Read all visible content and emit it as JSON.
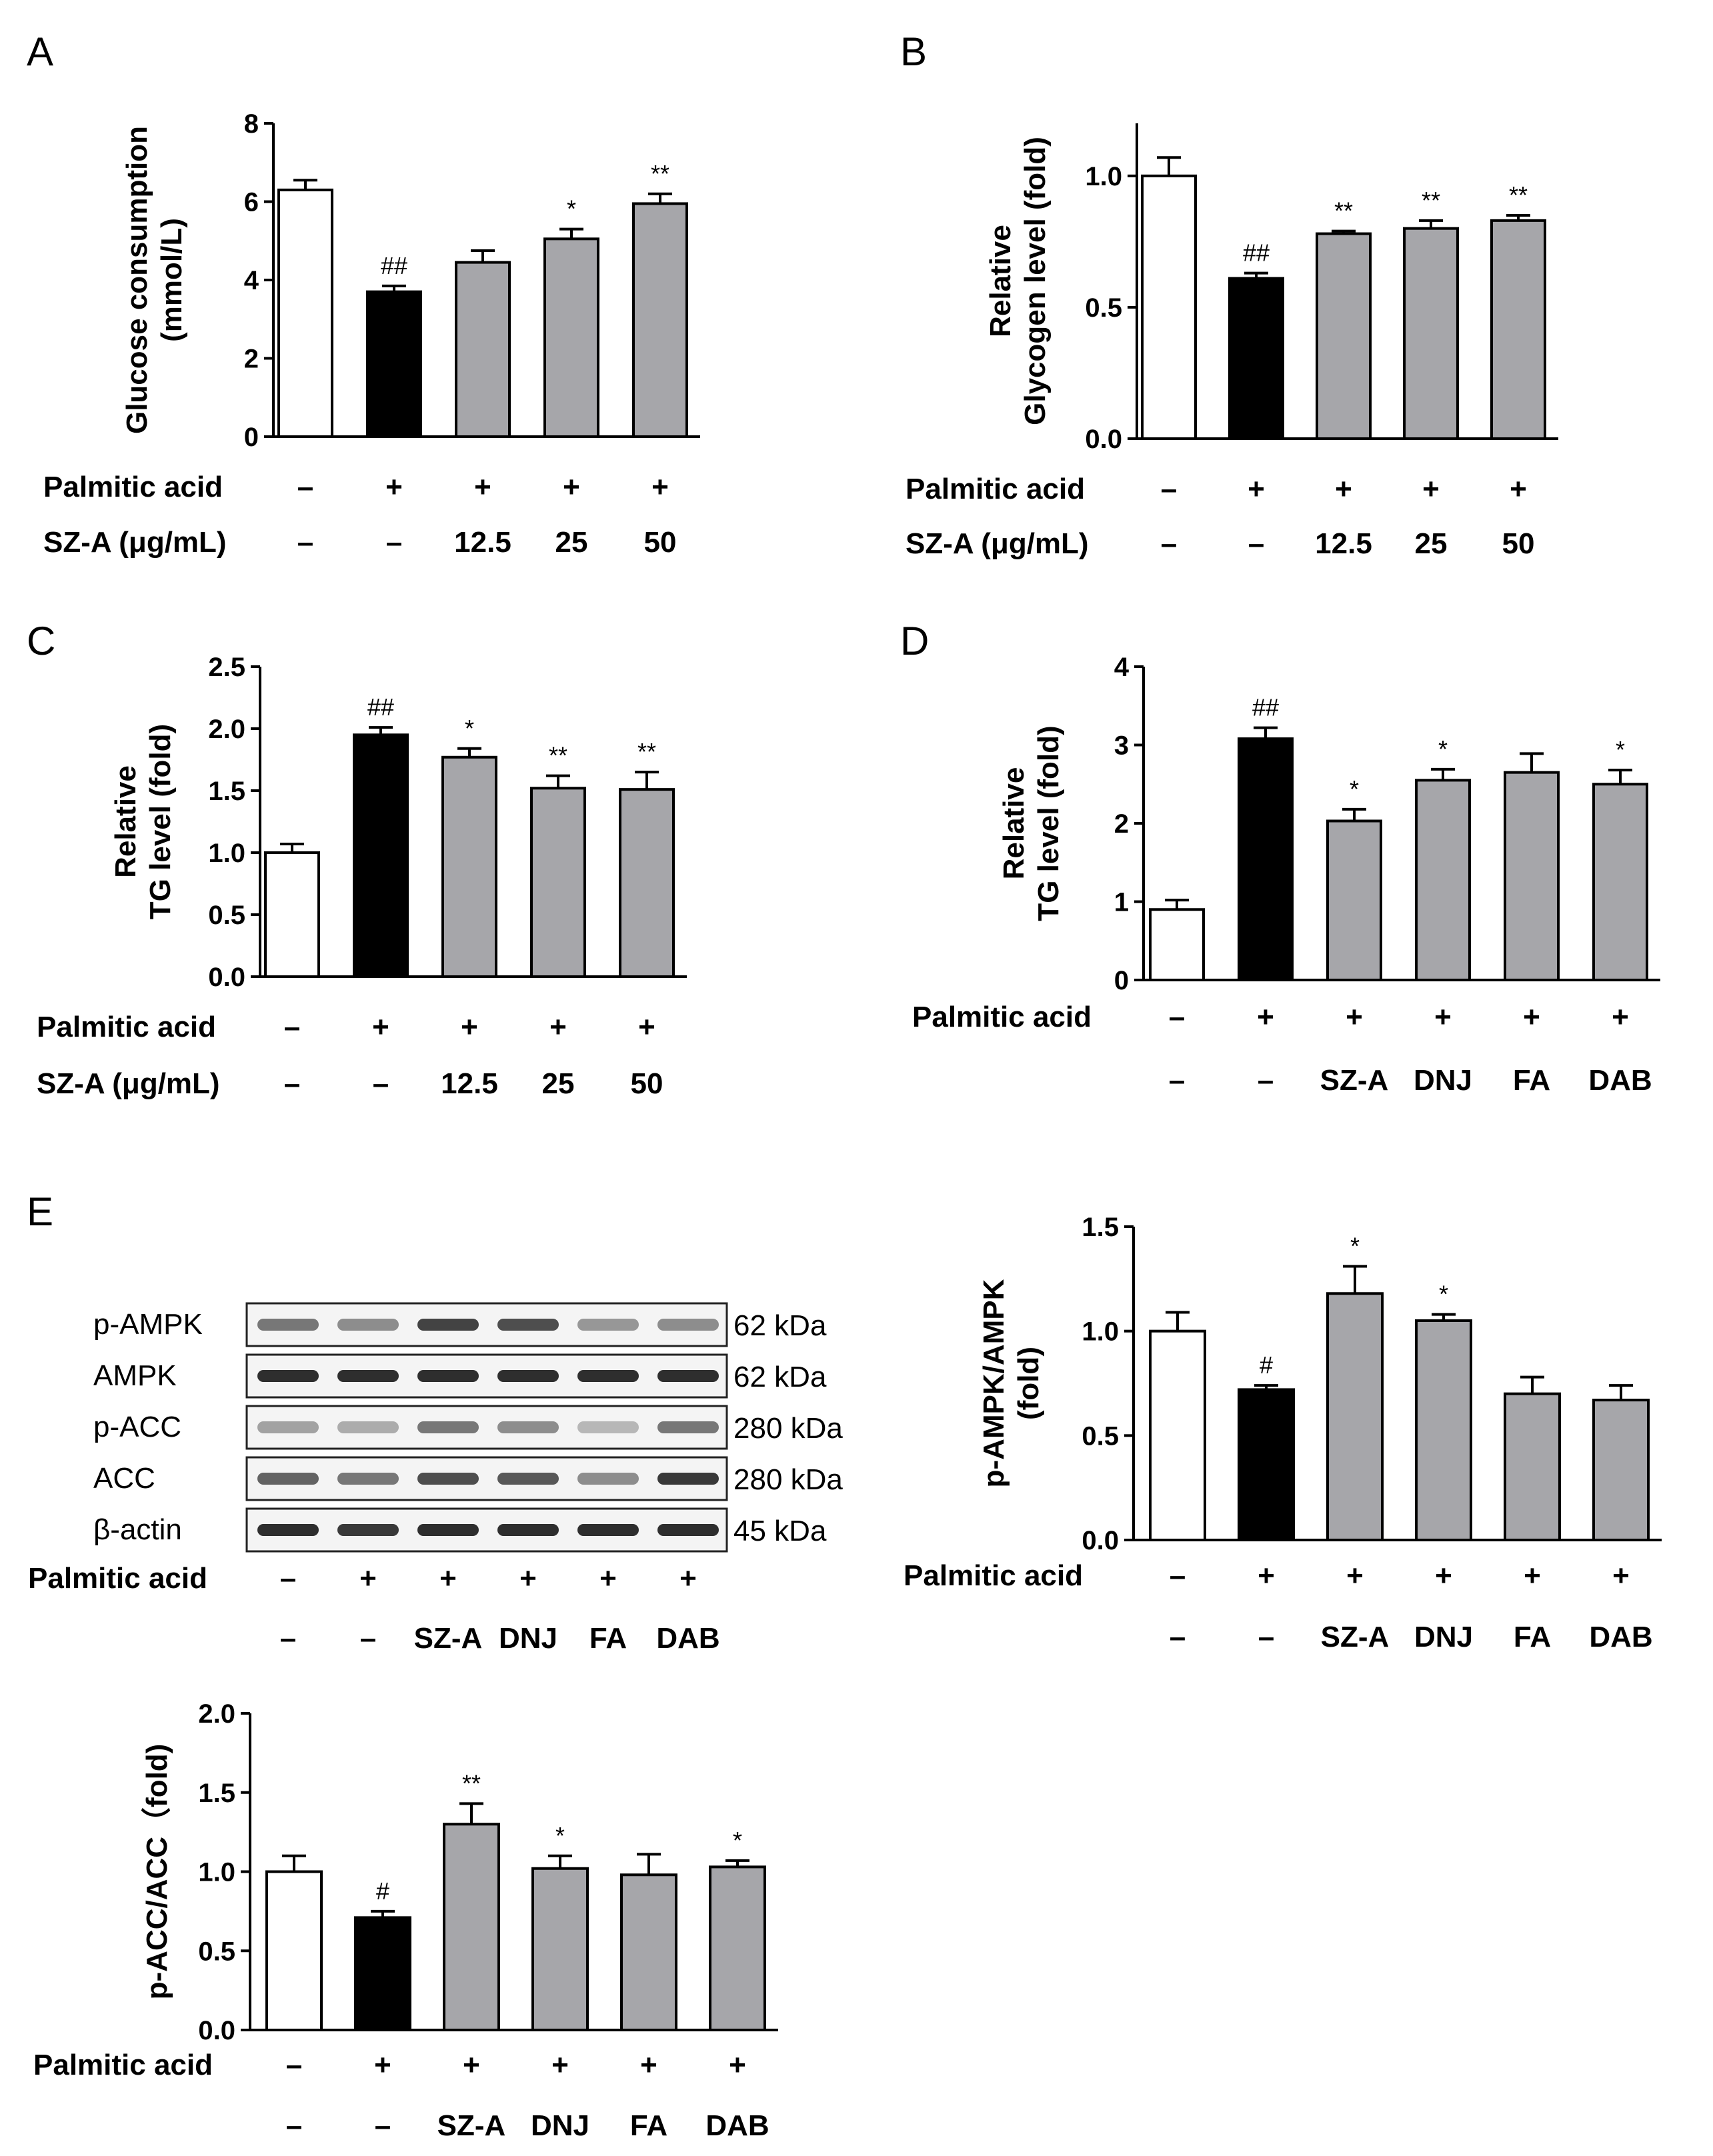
{
  "colors": {
    "control": "#ffffff",
    "model": "#000000",
    "treated": "#a6a6aa",
    "axis": "#000000"
  },
  "panels": {
    "A": "A",
    "B": "B",
    "C": "C",
    "D": "D",
    "E": "E"
  },
  "row_labels": {
    "palmitic": "Palmitic acid",
    "sza": "SZ-A (μg/mL)"
  },
  "chart_data": [
    {
      "id": "A",
      "type": "bar",
      "ylabel": [
        "Glucose consumption",
        "(mmol/L)"
      ],
      "ylim": [
        0,
        8
      ],
      "yticks": [
        "0",
        "2",
        "4",
        "6",
        "8"
      ],
      "values": [
        6.3,
        3.7,
        4.45,
        5.05,
        5.95
      ],
      "errors": [
        0.25,
        0.15,
        0.3,
        0.25,
        0.25
      ],
      "fills": [
        "control",
        "model",
        "treated",
        "treated",
        "treated"
      ],
      "sig": [
        "",
        "##",
        "",
        "*",
        "**"
      ],
      "rows": [
        {
          "label": "Palmitic acid",
          "values": [
            "–",
            "+",
            "+",
            "+",
            "+"
          ]
        },
        {
          "label": "SZ-A (μg/mL)",
          "values": [
            "–",
            "–",
            "12.5",
            "25",
            "50"
          ]
        }
      ]
    },
    {
      "id": "B",
      "type": "bar",
      "ylabel": [
        "Relative",
        "Glycogen level (fold)"
      ],
      "ylim": [
        0,
        1.2
      ],
      "yticks": [
        "0.0",
        "0.5",
        "1.0"
      ],
      "values": [
        1.0,
        0.61,
        0.78,
        0.8,
        0.83
      ],
      "errors": [
        0.07,
        0.02,
        0.01,
        0.03,
        0.02
      ],
      "fills": [
        "control",
        "model",
        "treated",
        "treated",
        "treated"
      ],
      "sig": [
        "",
        "##",
        "**",
        "**",
        "**"
      ],
      "rows": [
        {
          "label": "Palmitic acid",
          "values": [
            "–",
            "+",
            "+",
            "+",
            "+"
          ]
        },
        {
          "label": "SZ-A (μg/mL)",
          "values": [
            "–",
            "–",
            "12.5",
            "25",
            "50"
          ]
        }
      ]
    },
    {
      "id": "C",
      "type": "bar",
      "ylabel": [
        "Relative",
        "TG level (fold)"
      ],
      "ylim": [
        0,
        2.5
      ],
      "yticks": [
        "0.0",
        "0.5",
        "1.0",
        "1.5",
        "2.0",
        "2.5"
      ],
      "values": [
        1.0,
        1.95,
        1.77,
        1.52,
        1.51
      ],
      "errors": [
        0.07,
        0.06,
        0.07,
        0.1,
        0.14
      ],
      "fills": [
        "control",
        "model",
        "treated",
        "treated",
        "treated"
      ],
      "sig": [
        "",
        "##",
        "*",
        "**",
        "**"
      ],
      "rows": [
        {
          "label": "Palmitic acid",
          "values": [
            "–",
            "+",
            "+",
            "+",
            "+"
          ]
        },
        {
          "label": "SZ-A (μg/mL)",
          "values": [
            "–",
            "–",
            "12.5",
            "25",
            "50"
          ]
        }
      ]
    },
    {
      "id": "D",
      "type": "bar",
      "ylabel": [
        "Relative",
        "TG level (fold)"
      ],
      "ylim": [
        0,
        4
      ],
      "yticks": [
        "0",
        "1",
        "2",
        "3",
        "4"
      ],
      "values": [
        0.9,
        3.08,
        2.03,
        2.55,
        2.65,
        2.5
      ],
      "errors": [
        0.12,
        0.14,
        0.15,
        0.14,
        0.24,
        0.18
      ],
      "fills": [
        "control",
        "model",
        "treated",
        "treated",
        "treated",
        "treated"
      ],
      "sig": [
        "",
        "##",
        "*",
        "*",
        "",
        "*"
      ],
      "rows": [
        {
          "label": "Palmitic acid",
          "values": [
            "–",
            "+",
            "+",
            "+",
            "+",
            "+"
          ]
        },
        {
          "label": "",
          "values": [
            "–",
            "–",
            "SZ-A",
            "DNJ",
            "FA",
            "DAB"
          ]
        }
      ]
    },
    {
      "id": "E-AMPK",
      "type": "bar",
      "ylabel": [
        "p-AMPK/AMPK",
        "(fold)"
      ],
      "ylim": [
        0,
        1.5
      ],
      "yticks": [
        "0.0",
        "0.5",
        "1.0",
        "1.5"
      ],
      "values": [
        1.0,
        0.72,
        1.18,
        1.05,
        0.7,
        0.67
      ],
      "errors": [
        0.09,
        0.02,
        0.13,
        0.03,
        0.08,
        0.07
      ],
      "fills": [
        "control",
        "model",
        "treated",
        "treated",
        "treated",
        "treated"
      ],
      "sig": [
        "",
        "#",
        "*",
        "*",
        "",
        ""
      ],
      "rows": [
        {
          "label": "Palmitic acid",
          "values": [
            "–",
            "+",
            "+",
            "+",
            "+",
            "+"
          ]
        },
        {
          "label": "",
          "values": [
            "–",
            "–",
            "SZ-A",
            "DNJ",
            "FA",
            "DAB"
          ]
        }
      ]
    },
    {
      "id": "E-ACC",
      "type": "bar",
      "ylabel": [
        "p-ACC/ACC（fold)"
      ],
      "ylim": [
        0,
        2.0
      ],
      "yticks": [
        "0.0",
        "0.5",
        "1.0",
        "1.5",
        "2.0"
      ],
      "values": [
        1.0,
        0.71,
        1.3,
        1.02,
        0.98,
        1.03
      ],
      "errors": [
        0.1,
        0.04,
        0.13,
        0.08,
        0.13,
        0.04
      ],
      "fills": [
        "control",
        "model",
        "treated",
        "treated",
        "treated",
        "treated"
      ],
      "sig": [
        "",
        "#",
        "**",
        "*",
        "",
        "*"
      ],
      "rows": [
        {
          "label": "Palmitic acid",
          "values": [
            "–",
            "+",
            "+",
            "+",
            "+",
            "+"
          ]
        },
        {
          "label": "",
          "values": [
            "–",
            "–",
            "SZ-A",
            "DNJ",
            "FA",
            "DAB"
          ]
        }
      ]
    }
  ],
  "western_blot": {
    "bands": [
      {
        "name": "p-AMPK",
        "kda": "62 kDa",
        "intensity": [
          0.55,
          0.45,
          0.8,
          0.75,
          0.4,
          0.45
        ]
      },
      {
        "name": "AMPK",
        "kda": "62 kDa",
        "intensity": [
          0.9,
          0.9,
          0.9,
          0.9,
          0.9,
          0.9
        ]
      },
      {
        "name": "p-ACC",
        "kda": "280 kDa",
        "intensity": [
          0.35,
          0.3,
          0.55,
          0.45,
          0.25,
          0.55
        ]
      },
      {
        "name": "ACC",
        "kda": "280 kDa",
        "intensity": [
          0.65,
          0.55,
          0.75,
          0.7,
          0.45,
          0.85
        ]
      },
      {
        "name": "β-actin",
        "kda": "45 kDa",
        "intensity": [
          0.9,
          0.85,
          0.9,
          0.9,
          0.9,
          0.9
        ]
      }
    ],
    "rows": [
      {
        "label": "Palmitic acid",
        "values": [
          "–",
          "+",
          "+",
          "+",
          "+",
          "+"
        ]
      },
      {
        "label": "",
        "values": [
          "–",
          "–",
          "SZ-A",
          "DNJ",
          "FA",
          "DAB"
        ]
      }
    ]
  }
}
